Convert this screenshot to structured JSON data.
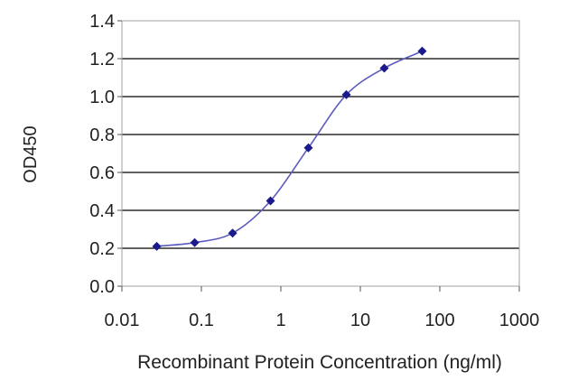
{
  "chart_data": {
    "type": "scatter",
    "title": "",
    "xlabel": "Recombinant Protein Concentration (ng/ml)",
    "ylabel": "OD450",
    "x_scale": "log",
    "xlim": [
      0.01,
      1000
    ],
    "ylim": [
      0.0,
      1.4
    ],
    "x_ticks": [
      "0.01",
      "0.1",
      "1",
      "10",
      "100",
      "1000"
    ],
    "y_ticks": [
      "0.0",
      "0.2",
      "0.4",
      "0.6",
      "0.8",
      "1.0",
      "1.2",
      "1.4"
    ],
    "grid": "horizontal",
    "fit_line": "sigmoidal",
    "series": [
      {
        "x": [
          0.0274,
          0.0823,
          0.247,
          0.741,
          2.22,
          6.67,
          20.0,
          60.0
        ],
        "y": [
          0.21,
          0.23,
          0.28,
          0.45,
          0.73,
          1.01,
          1.15,
          1.24
        ]
      }
    ],
    "colors": {
      "series": "#1a1a8c",
      "line": "#5b5bbf",
      "grid": "#000000",
      "axis_frame": "#a0a0a0"
    }
  }
}
